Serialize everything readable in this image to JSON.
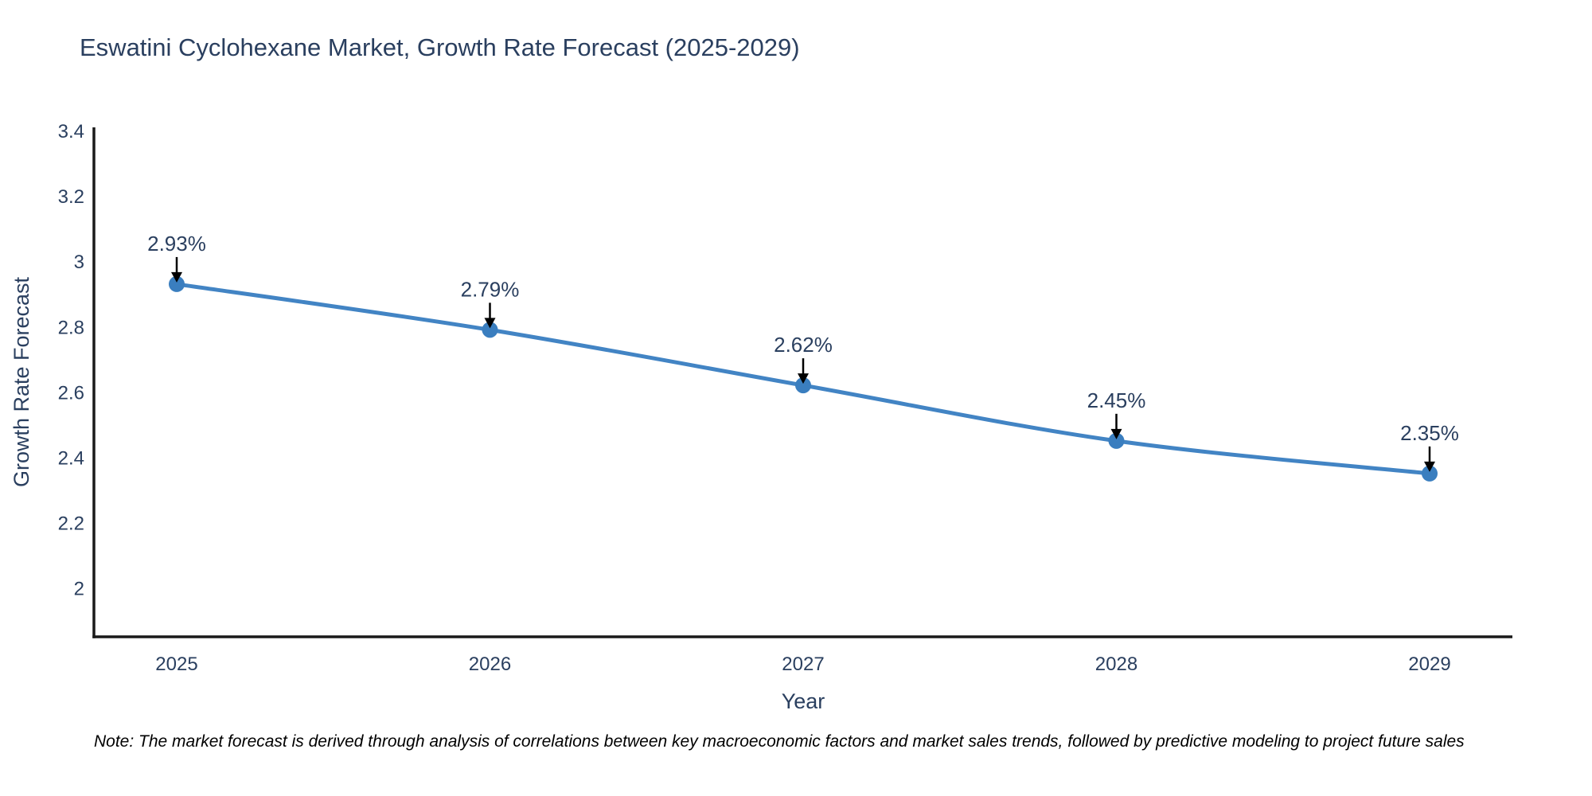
{
  "title": "Eswatini Cyclohexane Market, Growth Rate Forecast (2025-2029)",
  "note": "Note: The market forecast is derived through analysis of correlations between key macroeconomic factors and market sales trends, followed by predictive modeling to project future sales",
  "colors": {
    "line": "#4284c4",
    "marker": "#3a7ebf",
    "axis": "#1a1a1a",
    "text": "#2a3f5f",
    "arrow": "#000000",
    "background": "#ffffff"
  },
  "chart_data": {
    "type": "line",
    "title": "Eswatini Cyclohexane Market, Growth Rate Forecast (2025-2029)",
    "xlabel": "Year",
    "ylabel": "Growth Rate Forecast",
    "x": [
      "2025",
      "2026",
      "2027",
      "2028",
      "2029"
    ],
    "series": [
      {
        "name": "Growth Rate Forecast",
        "values": [
          2.93,
          2.79,
          2.62,
          2.45,
          2.35
        ],
        "point_labels": [
          "2.93%",
          "2.79%",
          "2.62%",
          "2.45%",
          "2.35%"
        ]
      }
    ],
    "ytick_labels": [
      "3.4",
      "3.2",
      "3",
      "2.8",
      "2.6",
      "2.4",
      "2.2",
      "2"
    ],
    "ytick_values": [
      3.4,
      3.2,
      3.0,
      2.8,
      2.6,
      2.4,
      2.2,
      2.0
    ],
    "ylim": [
      1.85,
      3.41
    ],
    "grid": false,
    "legend_position": "none",
    "line_shape": "spline",
    "annotation_style": "value label with downward arrow above each point"
  }
}
